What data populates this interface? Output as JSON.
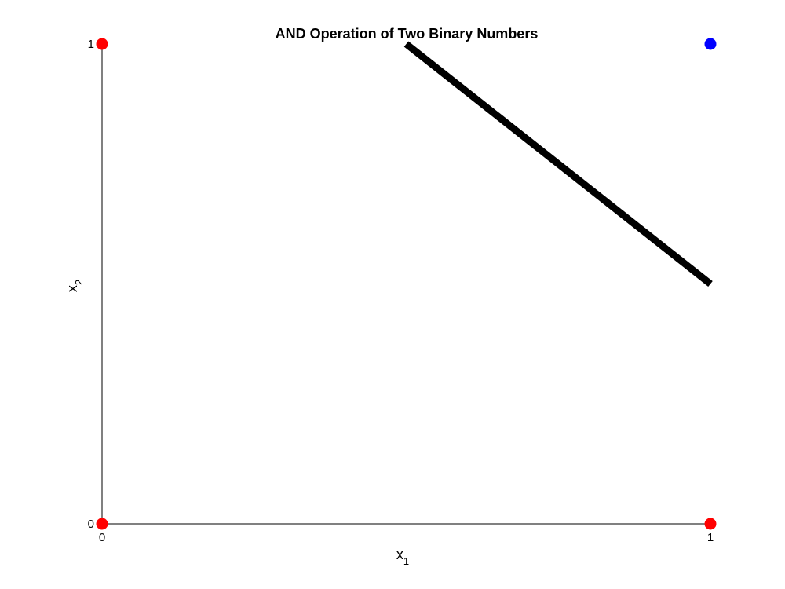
{
  "chart_data": {
    "type": "scatter",
    "title": "AND Operation of Two Binary Numbers",
    "xlabel": {
      "base": "x",
      "subscript": "1"
    },
    "ylabel": {
      "base": "x",
      "subscript": "2"
    },
    "xlim": [
      0,
      1
    ],
    "ylim": [
      0,
      1
    ],
    "xticks": [
      "0",
      "1"
    ],
    "yticks": [
      "0",
      "1"
    ],
    "grid": false,
    "series": [
      {
        "color": "#ff0000",
        "points": [
          {
            "x": 0,
            "y": 0
          },
          {
            "x": 1,
            "y": 0
          },
          {
            "x": 0,
            "y": 1
          }
        ]
      },
      {
        "color": "#0000ff",
        "points": [
          {
            "x": 1,
            "y": 1
          }
        ]
      }
    ],
    "boundary_line": {
      "color": "#000000",
      "points": [
        {
          "x": 0.5,
          "y": 1
        },
        {
          "x": 1,
          "y": 0.5
        }
      ]
    }
  }
}
